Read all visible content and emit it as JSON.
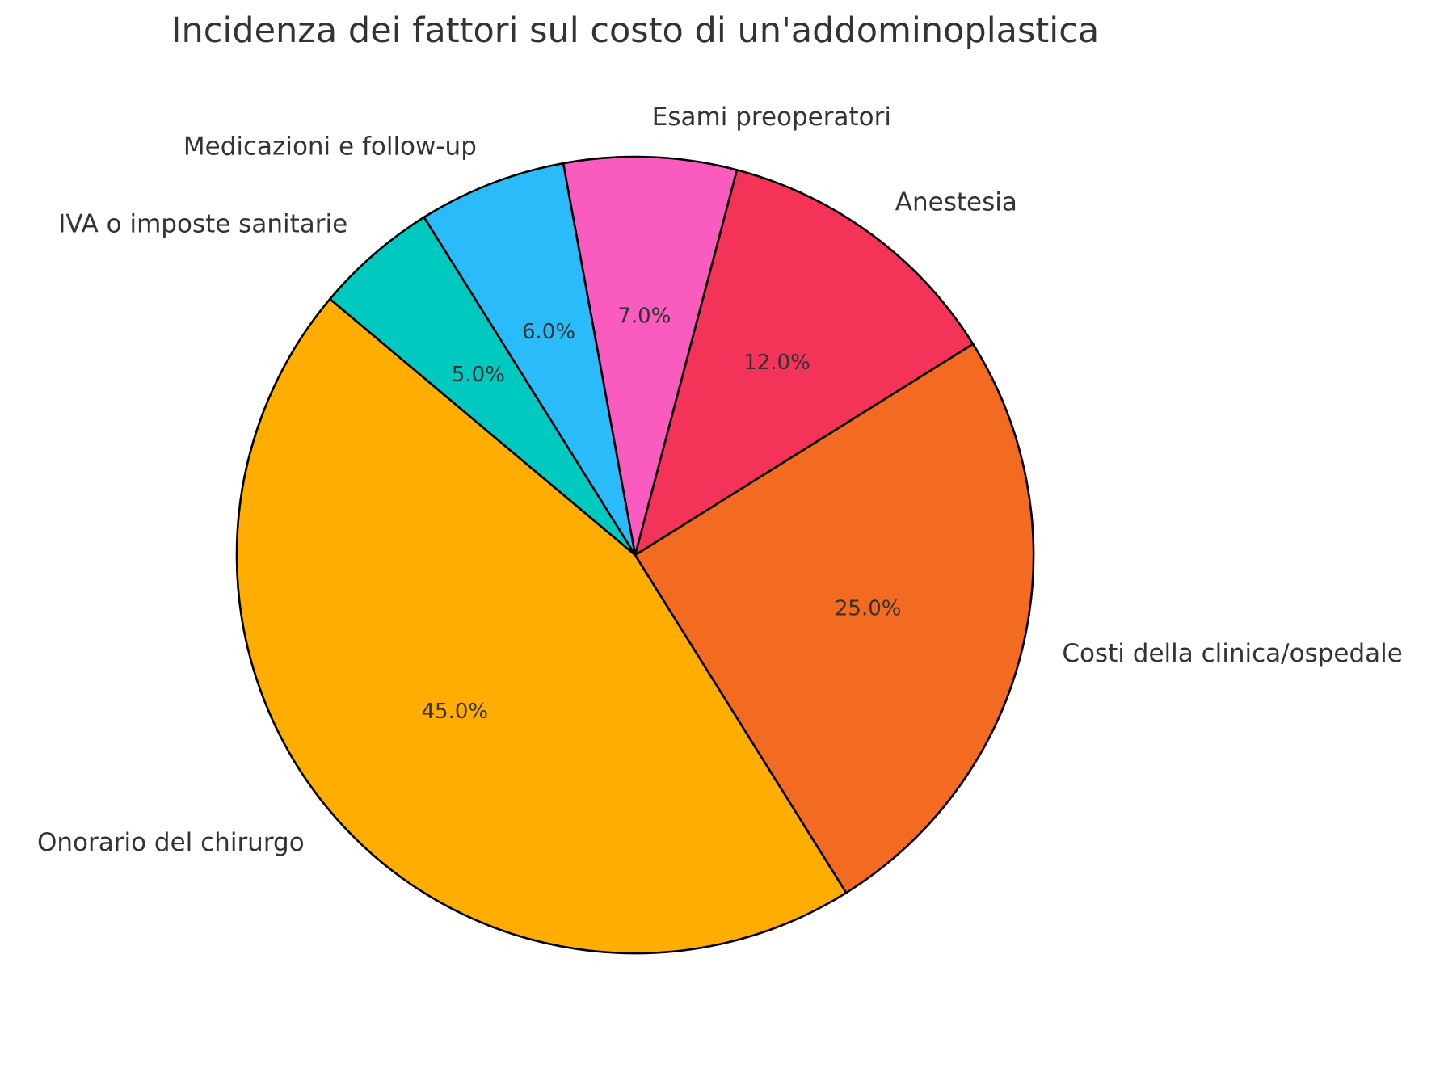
{
  "chart_data": {
    "type": "pie",
    "title": "Incidenza dei fattori sul costo di un'addominoplastica",
    "categories": [
      "Onorario del chirurgo",
      "Costi della clinica/ospedale",
      "Anestesia",
      "Esami preoperatori",
      "Medicazioni e follow-up",
      "IVA o imposte sanitarie"
    ],
    "values": [
      45,
      25,
      12,
      7,
      6,
      5
    ],
    "value_labels": [
      "45.0%",
      "25.0%",
      "12.0%",
      "7.0%",
      "6.0%",
      "5.0%"
    ],
    "colors": [
      "#FFAD00",
      "#F26B21",
      "#F43358",
      "#F95BBF",
      "#2ABBFB",
      "#00C9C0"
    ],
    "start_angle_deg": 140,
    "direction": "counterclockwise",
    "legend": "none"
  }
}
